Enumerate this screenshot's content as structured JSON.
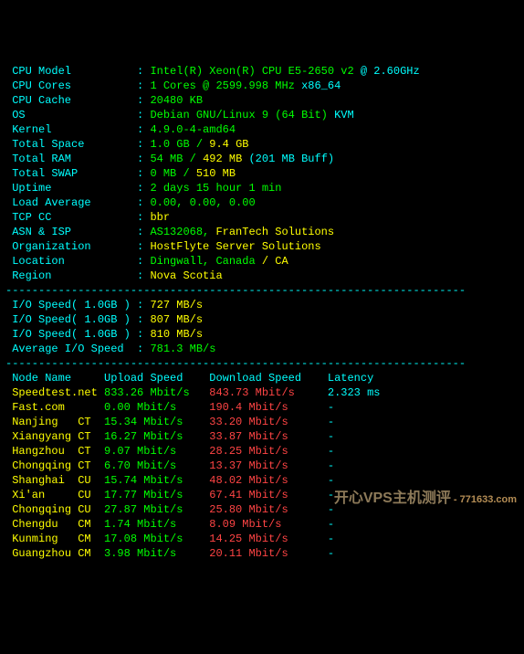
{
  "colors": {
    "bg": "#000000",
    "label": "#00ffff",
    "green": "#00ff00",
    "yellow": "#ffff00",
    "red": "#ff4444"
  },
  "divider": "----------------------------------------------------------------------",
  "sys": {
    "model_label": "CPU Model",
    "model_v1": "Intel(R) Xeon(R) CPU E5-2650 v2 ",
    "model_v2": "@ 2.60GHz",
    "cores_label": "CPU Cores",
    "cores_v1": "1 Cores @ 2599.998 MHz ",
    "cores_v2": "x86_64",
    "cache_label": "CPU Cache",
    "cache_v": "20480 KB",
    "os_label": "OS",
    "os_v1": "Debian GNU/Linux 9 ",
    "os_v2": "(64 Bit) ",
    "os_v3": "KVM",
    "kernel_label": "Kernel",
    "kernel_v": "4.9.0-4-amd64",
    "space_label": "Total Space",
    "space_v1": "1.0 GB ",
    "space_v2": "/ ",
    "space_v3": "9.4 GB",
    "ram_label": "Total RAM",
    "ram_v1": "54 MB ",
    "ram_v2": "/ ",
    "ram_v3": "492 MB ",
    "ram_v4": "(201 MB Buff)",
    "swap_label": "Total SWAP",
    "swap_v1": "0 MB ",
    "swap_v2": "/ ",
    "swap_v3": "510 MB",
    "uptime_label": "Uptime",
    "uptime_v": "2 days 15 hour 1 min",
    "load_label": "Load Average",
    "load_v": "0.00, 0.00, 0.00",
    "tcp_label": "TCP CC",
    "tcp_v": "bbr",
    "asn_label": "ASN & ISP",
    "asn_v1": "AS132068, ",
    "asn_v2": "FranTech Solutions",
    "org_label": "Organization",
    "org_v": "HostFlyte Server Solutions",
    "loc_label": "Location",
    "loc_v1": "Dingwall, Canada ",
    "loc_v2": "/ CA",
    "reg_label": "Region",
    "reg_v": "Nova Scotia"
  },
  "io": {
    "r1_label": "I/O Speed( 1.0GB )",
    "r1_v": "727 MB/s",
    "r2_label": "I/O Speed( 1.0GB )",
    "r2_v": "807 MB/s",
    "r3_label": "I/O Speed( 1.0GB )",
    "r3_v": "810 MB/s",
    "avg_label": "Average I/O Speed",
    "avg_v": "781.3 MB/s"
  },
  "speed": {
    "h1": "Node Name",
    "h2": "Upload Speed",
    "h3": "Download Speed",
    "h4": "Latency",
    "rows": [
      {
        "name": "Speedtest.net ",
        "up": "833.26 Mbit/s",
        "down": "843.73 Mbit/s",
        "lat": "2.323 ms"
      },
      {
        "name": "Fast.com      ",
        "up": "0.00 Mbit/s  ",
        "down": "190.4 Mbit/s ",
        "lat": "-"
      },
      {
        "name": "Nanjing   CT  ",
        "up": "15.34 Mbit/s ",
        "down": "33.20 Mbit/s ",
        "lat": "-"
      },
      {
        "name": "Xiangyang CT  ",
        "up": "16.27 Mbit/s ",
        "down": "33.87 Mbit/s ",
        "lat": "-"
      },
      {
        "name": "Hangzhou  CT  ",
        "up": "9.07 Mbit/s  ",
        "down": "28.25 Mbit/s ",
        "lat": "-"
      },
      {
        "name": "Chongqing CT  ",
        "up": "6.70 Mbit/s  ",
        "down": "13.37 Mbit/s ",
        "lat": "-"
      },
      {
        "name": "Shanghai  CU  ",
        "up": "15.74 Mbit/s ",
        "down": "48.02 Mbit/s ",
        "lat": "-"
      },
      {
        "name": "Xi'an     CU  ",
        "up": "17.77 Mbit/s ",
        "down": "67.41 Mbit/s ",
        "lat": "-"
      },
      {
        "name": "Chongqing CU  ",
        "up": "27.87 Mbit/s ",
        "down": "25.80 Mbit/s ",
        "lat": "-"
      },
      {
        "name": "Chengdu   CM  ",
        "up": "1.74 Mbit/s  ",
        "down": "8.09 Mbit/s  ",
        "lat": "-"
      },
      {
        "name": "Kunming   CM  ",
        "up": "17.08 Mbit/s ",
        "down": "14.25 Mbit/s ",
        "lat": "-"
      },
      {
        "name": "Guangzhou CM  ",
        "up": "3.98 Mbit/s  ",
        "down": "20.11 Mbit/s ",
        "lat": "-"
      }
    ]
  },
  "watermark": {
    "main": "开心VPS主机测评",
    "sub": " - 771633.com"
  }
}
